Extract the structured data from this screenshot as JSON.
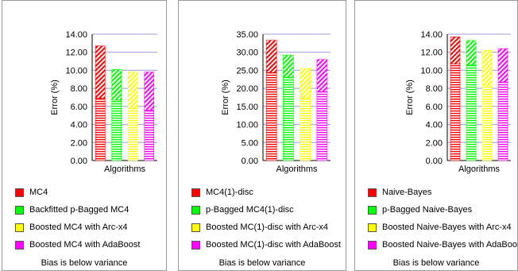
{
  "chart_data": [
    {
      "type": "bar",
      "subtype": "stacked",
      "xlabel": "Algorithms",
      "ylabel": "Error (%)",
      "ylim": [
        0,
        14
      ],
      "ytick_step": 2,
      "tick_labels": [
        "0.00",
        "2.00",
        "4.00",
        "6.00",
        "8.00",
        "10.00",
        "12.00",
        "14.00"
      ],
      "grid": true,
      "bottom_component": "bias",
      "top_component": "variance",
      "series": [
        {
          "name": "MC4",
          "bias": 6.9,
          "variance": 5.8,
          "total": 12.7,
          "color": "#ff0000"
        },
        {
          "name": "Backfitted p-Bagged MC4",
          "bias": 6.7,
          "variance": 3.4,
          "total": 10.1,
          "color": "#00ff00"
        },
        {
          "name": "Boosted MC4 with Arc-x4",
          "bias": 5.8,
          "variance": 4.0,
          "total": 9.8,
          "color": "#ffff00"
        },
        {
          "name": "Boosted MC4 with AdaBoost",
          "bias": 5.6,
          "variance": 4.2,
          "total": 9.8,
          "color": "#ff00ff"
        }
      ],
      "footnote": "Bias is below variance"
    },
    {
      "type": "bar",
      "subtype": "stacked",
      "xlabel": "Algorithms",
      "ylabel": "Error (%)",
      "ylim": [
        0,
        35
      ],
      "ytick_step": 5,
      "tick_labels": [
        "0.00",
        "5.00",
        "10.00",
        "15.00",
        "20.00",
        "25.00",
        "30.00",
        "35.00"
      ],
      "grid": true,
      "bottom_component": "bias",
      "top_component": "variance",
      "series": [
        {
          "name": "MC4(1)-disc",
          "bias": 24.4,
          "variance": 8.9,
          "total": 33.3,
          "color": "#ff0000"
        },
        {
          "name": "p-Bagged MC4(1)-disc",
          "bias": 23.1,
          "variance": 6.1,
          "total": 29.2,
          "color": "#00ff00"
        },
        {
          "name": "Boosted MC(1)-disc with Arc-x4",
          "bias": 17.3,
          "variance": 8.2,
          "total": 25.5,
          "color": "#ffff00"
        },
        {
          "name": "Boosted MC(1)-disc with AdaBoost",
          "bias": 19.1,
          "variance": 8.9,
          "total": 28.0,
          "color": "#ff00ff"
        }
      ],
      "footnote": "Bias is below variance"
    },
    {
      "type": "bar",
      "subtype": "stacked",
      "xlabel": "Algorithms",
      "ylabel": "Error (%)",
      "ylim": [
        0,
        14
      ],
      "ytick_step": 2,
      "tick_labels": [
        "0.00",
        "2.00",
        "4.00",
        "6.00",
        "8.00",
        "10.00",
        "12.00",
        "14.00"
      ],
      "grid": true,
      "bottom_component": "bias",
      "top_component": "variance",
      "series": [
        {
          "name": "Naive-Bayes",
          "bias": 10.7,
          "variance": 3.0,
          "total": 13.7,
          "color": "#ff0000"
        },
        {
          "name": "p-Bagged Naive-Bayes",
          "bias": 10.6,
          "variance": 2.7,
          "total": 13.3,
          "color": "#00ff00"
        },
        {
          "name": "Boosted Naive-Bayes with Arc-x4",
          "bias": 8.3,
          "variance": 3.9,
          "total": 12.2,
          "color": "#ffff00"
        },
        {
          "name": "Boosted Naive-Bayes with AdaBoost",
          "bias": 8.7,
          "variance": 3.7,
          "total": 12.4,
          "color": "#ff00ff"
        }
      ],
      "footnote": "Bias is below variance"
    }
  ]
}
